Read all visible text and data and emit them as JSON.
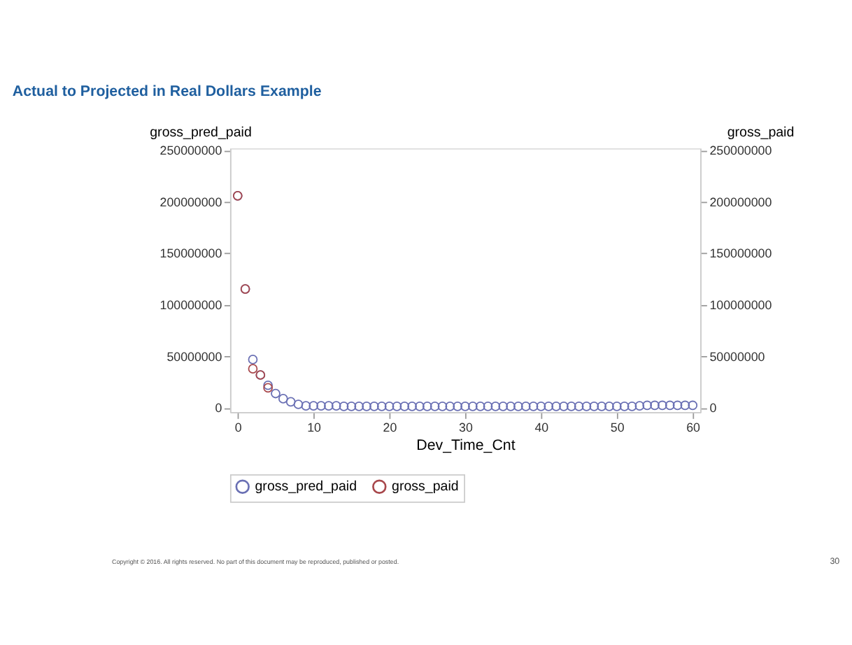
{
  "chart_data": {
    "type": "scatter",
    "title": "Actual to Projected in Real Dollars Example",
    "xlabel": "Dev_Time_Cnt",
    "ylabel": "gross_pred_paid",
    "y2label": "gross_paid",
    "x": [
      0,
      1,
      2,
      3,
      4,
      5,
      6,
      7,
      8,
      9,
      10,
      11,
      12,
      13,
      14,
      15,
      16,
      17,
      18,
      19,
      20,
      21,
      22,
      23,
      24,
      25,
      26,
      27,
      28,
      29,
      30,
      31,
      32,
      33,
      34,
      35,
      36,
      37,
      38,
      39,
      40,
      41,
      42,
      43,
      44,
      45,
      46,
      47,
      48,
      49,
      50,
      51,
      52,
      53,
      54,
      55,
      56,
      57,
      58,
      59,
      60
    ],
    "series": [
      {
        "name": "gross_pred_paid",
        "color": "#6a70b4",
        "values": [
          206000000,
          115500000,
          47000000,
          32000000,
          22000000,
          14000000,
          9000000,
          6000000,
          3500000,
          2000000,
          2000000,
          2000000,
          2000000,
          2000000,
          1500000,
          1500000,
          1500000,
          1500000,
          1500000,
          1500000,
          1500000,
          1500000,
          1500000,
          1500000,
          1500000,
          1500000,
          1500000,
          1500000,
          1500000,
          1500000,
          1500000,
          1500000,
          1500000,
          1500000,
          1500000,
          1500000,
          1500000,
          1500000,
          1500000,
          1500000,
          1500000,
          1500000,
          1500000,
          1500000,
          1500000,
          1500000,
          1500000,
          1500000,
          1500000,
          1500000,
          1500000,
          1500000,
          1500000,
          2000000,
          2500000,
          2500000,
          2500000,
          2500000,
          2500000,
          2500000,
          2500000
        ]
      },
      {
        "name": "gross_paid",
        "color": "#a8484c",
        "axis": "y2",
        "values": [
          206000000,
          115500000,
          38000000,
          32000000,
          19500000,
          null,
          null,
          null,
          null,
          null,
          null,
          null,
          null,
          null,
          null,
          null,
          null,
          null,
          null,
          null,
          null,
          null,
          null,
          null,
          null,
          null,
          null,
          null,
          null,
          null,
          null,
          null,
          null,
          null,
          null,
          null,
          null,
          null,
          null,
          null,
          null,
          null,
          null,
          null,
          null,
          null,
          null,
          null,
          null,
          null,
          null,
          null,
          null,
          null,
          null,
          null,
          null,
          null,
          null,
          null,
          null
        ]
      }
    ],
    "xlim": [
      -1,
      61
    ],
    "xticks": [
      0,
      10,
      20,
      30,
      40,
      50,
      60
    ],
    "ylim": [
      -4000000,
      252000000
    ],
    "yticks": [
      0,
      50000000,
      100000000,
      150000000,
      200000000,
      250000000
    ],
    "y2lim": [
      -4000000,
      252000000
    ],
    "y2ticks": [
      0,
      50000000,
      100000000,
      150000000,
      200000000,
      250000000
    ],
    "marker": "circle",
    "grid": false,
    "legend": "bottom",
    "annotations": [
      "Copyright © 2016. All rights reserved. No part of this document may be reproduced, published or posted.",
      "30"
    ]
  }
}
